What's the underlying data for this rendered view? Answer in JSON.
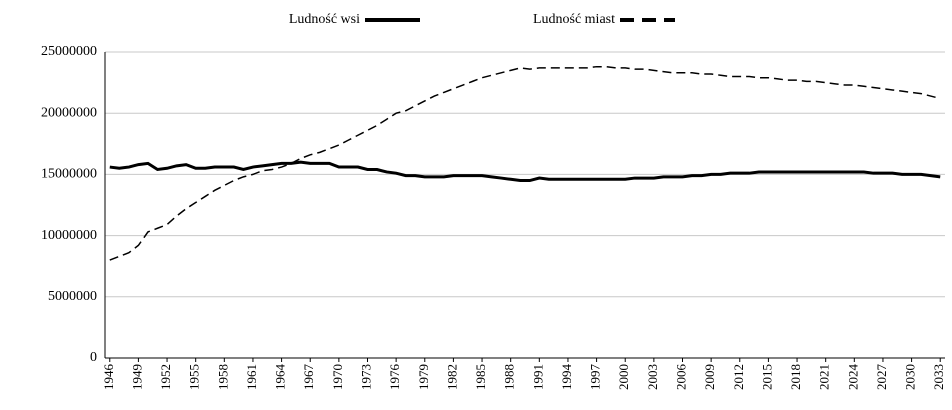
{
  "chart_data": {
    "type": "line",
    "x": [
      1946,
      1947,
      1948,
      1949,
      1950,
      1951,
      1952,
      1953,
      1954,
      1955,
      1956,
      1957,
      1958,
      1959,
      1960,
      1961,
      1962,
      1963,
      1964,
      1965,
      1966,
      1967,
      1968,
      1969,
      1970,
      1971,
      1972,
      1973,
      1974,
      1975,
      1976,
      1977,
      1978,
      1979,
      1980,
      1981,
      1982,
      1983,
      1984,
      1985,
      1986,
      1987,
      1988,
      1989,
      1990,
      1991,
      1992,
      1993,
      1994,
      1995,
      1996,
      1997,
      1998,
      1999,
      2000,
      2001,
      2002,
      2003,
      2004,
      2005,
      2006,
      2007,
      2008,
      2009,
      2010,
      2011,
      2012,
      2013,
      2014,
      2015,
      2016,
      2017,
      2018,
      2019,
      2020,
      2021,
      2022,
      2023,
      2024,
      2025,
      2026,
      2027,
      2028,
      2029,
      2030,
      2031,
      2032,
      2033
    ],
    "series": [
      {
        "name": "Ludność wsi",
        "color": "#000000",
        "dash": "solid",
        "values": [
          15600000,
          15500000,
          15600000,
          15800000,
          15900000,
          15400000,
          15500000,
          15700000,
          15800000,
          15500000,
          15500000,
          15600000,
          15600000,
          15600000,
          15400000,
          15600000,
          15700000,
          15800000,
          15900000,
          15900000,
          16000000,
          15900000,
          15900000,
          15900000,
          15600000,
          15600000,
          15600000,
          15400000,
          15400000,
          15200000,
          15100000,
          14900000,
          14900000,
          14800000,
          14800000,
          14800000,
          14900000,
          14900000,
          14900000,
          14900000,
          14800000,
          14700000,
          14600000,
          14500000,
          14500000,
          14700000,
          14600000,
          14600000,
          14600000,
          14600000,
          14600000,
          14600000,
          14600000,
          14600000,
          14600000,
          14700000,
          14700000,
          14700000,
          14800000,
          14800000,
          14800000,
          14900000,
          14900000,
          15000000,
          15000000,
          15100000,
          15100000,
          15100000,
          15200000,
          15200000,
          15200000,
          15200000,
          15200000,
          15200000,
          15200000,
          15200000,
          15200000,
          15200000,
          15200000,
          15200000,
          15100000,
          15100000,
          15100000,
          15000000,
          15000000,
          15000000,
          14900000,
          14800000
        ]
      },
      {
        "name": "Ludność miast",
        "color": "#000000",
        "dash": "dashed",
        "values": [
          8000000,
          8300000,
          8600000,
          9200000,
          10300000,
          10600000,
          10900000,
          11600000,
          12200000,
          12700000,
          13200000,
          13700000,
          14100000,
          14500000,
          14800000,
          15000000,
          15300000,
          15400000,
          15600000,
          15900000,
          16300000,
          16600000,
          16800000,
          17100000,
          17400000,
          17800000,
          18200000,
          18600000,
          19000000,
          19500000,
          20000000,
          20200000,
          20600000,
          21000000,
          21400000,
          21700000,
          22000000,
          22300000,
          22600000,
          22900000,
          23100000,
          23300000,
          23500000,
          23700000,
          23600000,
          23700000,
          23700000,
          23700000,
          23700000,
          23700000,
          23700000,
          23800000,
          23800000,
          23700000,
          23700000,
          23600000,
          23600000,
          23500000,
          23400000,
          23300000,
          23300000,
          23300000,
          23200000,
          23200000,
          23100000,
          23000000,
          23000000,
          23000000,
          22900000,
          22900000,
          22800000,
          22700000,
          22700000,
          22600000,
          22600000,
          22500000,
          22400000,
          22300000,
          22300000,
          22200000,
          22100000,
          22000000,
          21900000,
          21800000,
          21700000,
          21600000,
          21400000,
          21200000
        ]
      }
    ],
    "xlim": [
      1945.5,
      2033.5
    ],
    "xticks": [
      1946,
      1949,
      1952,
      1955,
      1958,
      1961,
      1964,
      1967,
      1970,
      1973,
      1976,
      1979,
      1982,
      1985,
      1988,
      1991,
      1994,
      1997,
      2000,
      2003,
      2006,
      2009,
      2012,
      2015,
      2018,
      2021,
      2024,
      2027,
      2030,
      2033
    ],
    "ylim": [
      0,
      25000000
    ],
    "yticks": [
      0,
      5000000,
      10000000,
      15000000,
      20000000,
      25000000
    ],
    "grid": true,
    "legend": "top"
  }
}
